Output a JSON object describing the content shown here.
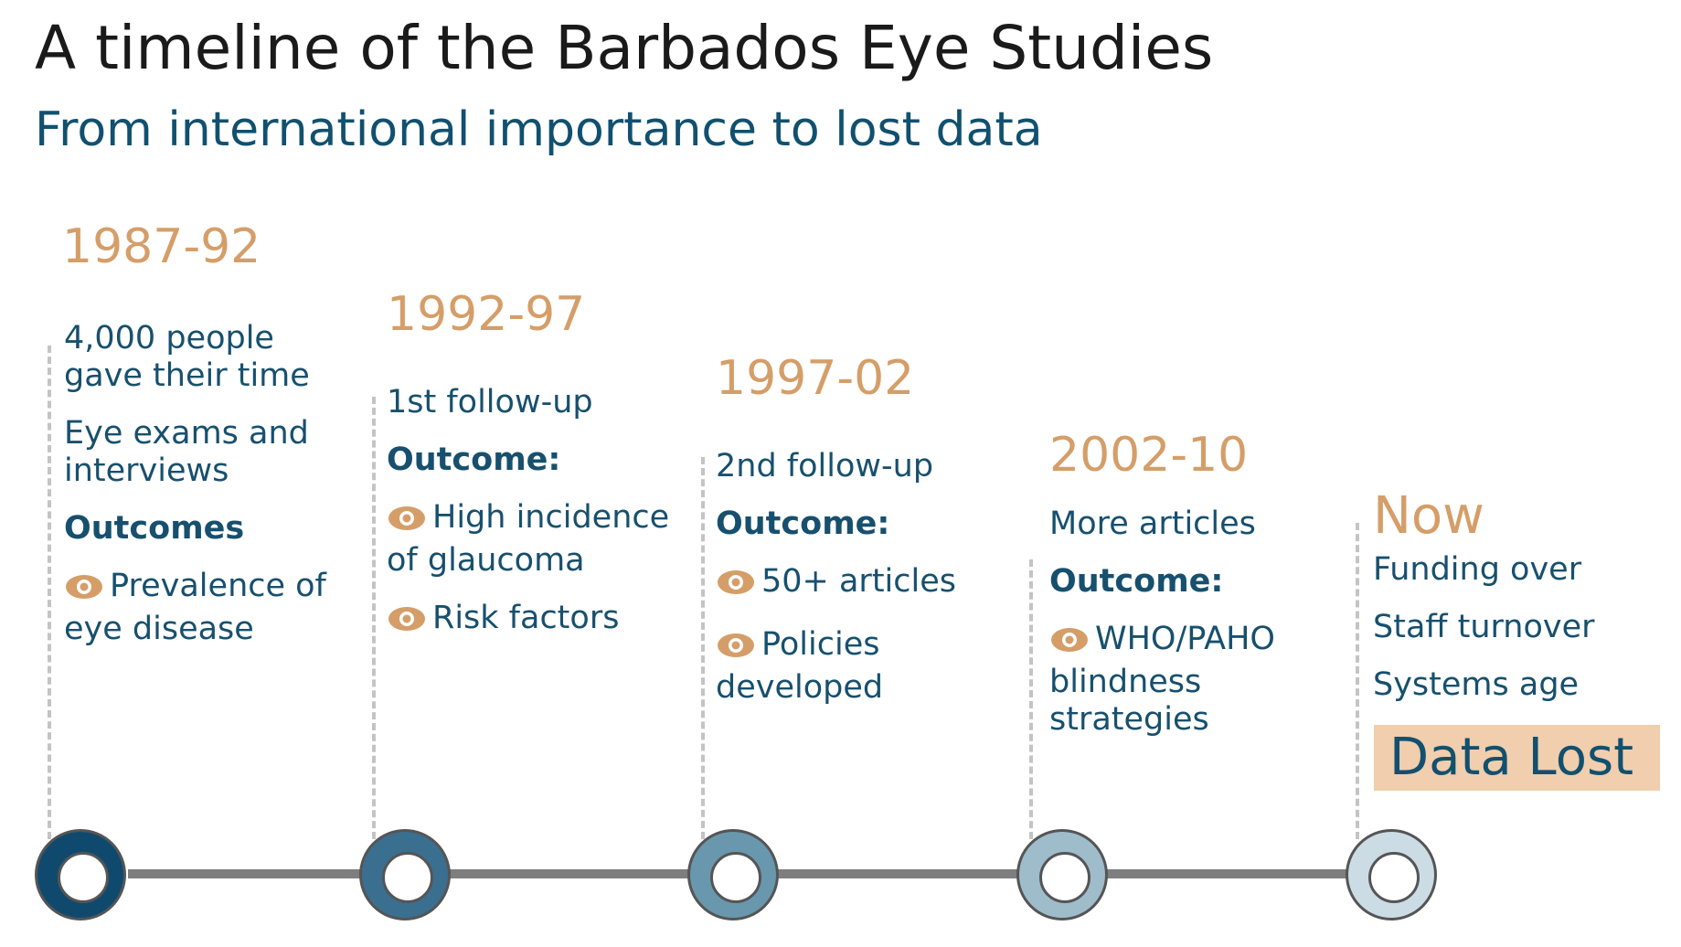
{
  "title": "A timeline of the Barbados Eye Studies",
  "subtitle": "From international importance to lost data",
  "colors": {
    "period": "#d59e68",
    "body_text": "#17506e",
    "ring_1": "#0f4a6e",
    "ring_2": "#3a6f8f",
    "ring_3": "#6997ad",
    "ring_4": "#9fbccb",
    "ring_5": "#ccdce4",
    "connector": "#7e7e7e",
    "data_lost_bg": "#f0ceae"
  },
  "stages": [
    {
      "period": "1987-92",
      "items": [
        {
          "text": "4,000 people gave their time",
          "bold": false,
          "icon": null
        },
        {
          "text": "Eye exams and interviews",
          "bold": false,
          "icon": null
        },
        {
          "text": "Outcomes",
          "bold": true,
          "icon": null
        },
        {
          "text": "Prevalence of eye disease",
          "bold": false,
          "icon": "eye-icon"
        }
      ]
    },
    {
      "period": "1992-97",
      "items": [
        {
          "text": "1st follow-up",
          "bold": false,
          "icon": null
        },
        {
          "text": "Outcome:",
          "bold": true,
          "icon": null
        },
        {
          "text": "High incidence of glaucoma",
          "bold": false,
          "icon": "eye-icon"
        },
        {
          "text": "Risk factors",
          "bold": false,
          "icon": "eye-icon"
        }
      ]
    },
    {
      "period": "1997-02",
      "items": [
        {
          "text": "2nd follow-up",
          "bold": false,
          "icon": null
        },
        {
          "text": "Outcome:",
          "bold": true,
          "icon": null
        },
        {
          "text": "50+ articles",
          "bold": false,
          "icon": "eye-icon"
        },
        {
          "text": "Policies developed",
          "bold": false,
          "icon": "eye-icon"
        }
      ]
    },
    {
      "period": "2002-10",
      "items": [
        {
          "text": "More articles",
          "bold": false,
          "icon": null
        },
        {
          "text": "Outcome:",
          "bold": true,
          "icon": null
        },
        {
          "text": "WHO/PAHO blindness strategies",
          "bold": false,
          "icon": "eye-icon"
        }
      ]
    },
    {
      "period": "Now",
      "items": [
        {
          "text": "Funding over",
          "bold": false,
          "icon": null
        },
        {
          "text": "Staff turnover",
          "bold": false,
          "icon": null
        },
        {
          "text": "Systems age",
          "bold": false,
          "icon": null
        }
      ]
    }
  ],
  "data_lost_label": "Data Lost"
}
